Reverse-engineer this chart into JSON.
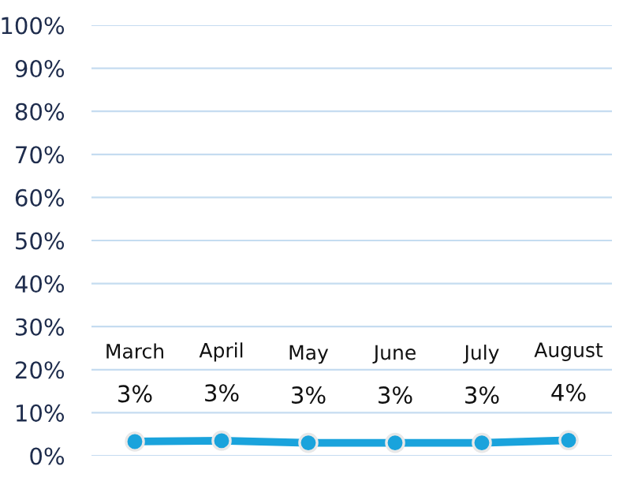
{
  "chart_data": {
    "type": "line",
    "categories": [
      "March",
      "April",
      "May",
      "June",
      "July",
      "August"
    ],
    "series": [
      {
        "color": "#1aa3dc",
        "values": [
          3.3,
          3.5,
          3.0,
          3.0,
          3.0,
          3.6
        ],
        "value_labels": [
          "3%",
          "3%",
          "3%",
          "3%",
          "3%",
          "4%"
        ]
      }
    ],
    "ylim": [
      0,
      100
    ],
    "yticks": [
      {
        "value": 0,
        "label": "0%"
      },
      {
        "value": 10,
        "label": "10%"
      },
      {
        "value": 20,
        "label": "20%"
      },
      {
        "value": 30,
        "label": "30%"
      },
      {
        "value": 40,
        "label": "40%"
      },
      {
        "value": 50,
        "label": "50%"
      },
      {
        "value": 60,
        "label": "60%"
      },
      {
        "value": 70,
        "label": "70%"
      },
      {
        "value": 80,
        "label": "80%"
      },
      {
        "value": 90,
        "label": "90%"
      },
      {
        "value": 100,
        "label": "100%"
      }
    ],
    "grid": "y",
    "marker": "circle",
    "line_style": "solid",
    "legend": false
  }
}
